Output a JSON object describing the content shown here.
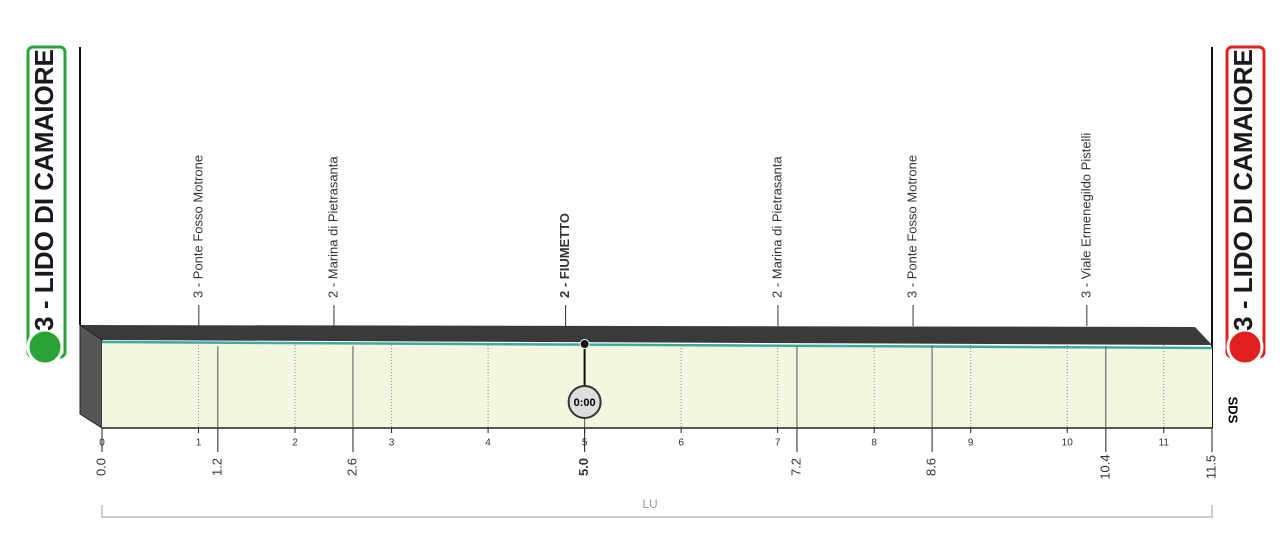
{
  "chart_data": {
    "type": "profile",
    "start": "3 - LIDO DI CAMAIORE",
    "finish": "3 - LIDO DI CAMAIORE",
    "xlim": [
      0,
      11.5
    ],
    "xticks": [
      0,
      1,
      2,
      3,
      4,
      5,
      6,
      7,
      8,
      9,
      10,
      11
    ],
    "start_km": {
      "value": 0,
      "label": "0.0"
    },
    "finish_km": 11.5,
    "waypoints": [
      {
        "name": "3 - Ponte Fosso Motrone",
        "km": 1.2
      },
      {
        "name": "2 - Marina di Pietrasanta",
        "km": 2.6
      },
      {
        "name": "2 - FIUMETTO",
        "km": {
          "value": 5,
          "label": "5.0"
        },
        "timecheck": "0:00"
      },
      {
        "name": "2 - Marina di Pietrasanta",
        "km": 7.2
      },
      {
        "name": "3 - Ponte Fosso Motrone",
        "km": 8.6
      },
      {
        "name": "3 - Viale Ermenegildo Pistelli",
        "km": 10.4
      }
    ],
    "province": "LU",
    "logo": "SDS"
  }
}
